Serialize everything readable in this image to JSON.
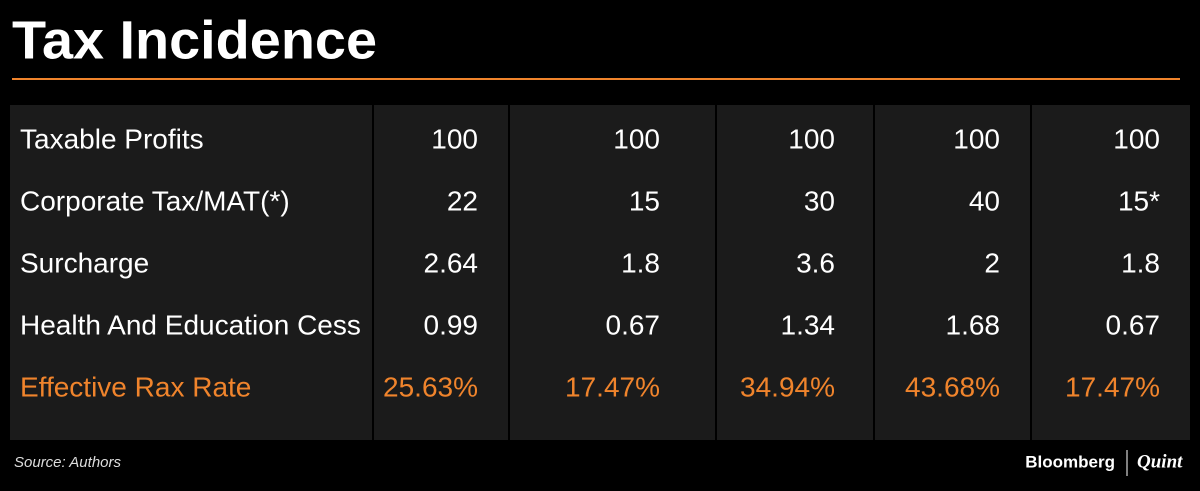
{
  "header": {
    "title": "Tax Incidence"
  },
  "table": {
    "rows": [
      [
        "Taxable Profits",
        "100",
        "100",
        "100",
        "100",
        "100"
      ],
      [
        "Corporate Tax/MAT(*)",
        "22",
        "15",
        "30",
        "40",
        "15*"
      ],
      [
        "Surcharge",
        "2.64",
        "1.8",
        "3.6",
        "2",
        "1.8"
      ],
      [
        "Health And Education Cess",
        "0.99",
        "0.67",
        "1.34",
        "1.68",
        "0.67"
      ],
      [
        "Effective Rax Rate",
        "25.63%",
        "17.47%",
        "34.94%",
        "43.68%",
        "17.47%"
      ]
    ]
  },
  "footer": {
    "source": "Source: Authors",
    "brand": "Bloomberg",
    "partner": "Quint"
  }
}
